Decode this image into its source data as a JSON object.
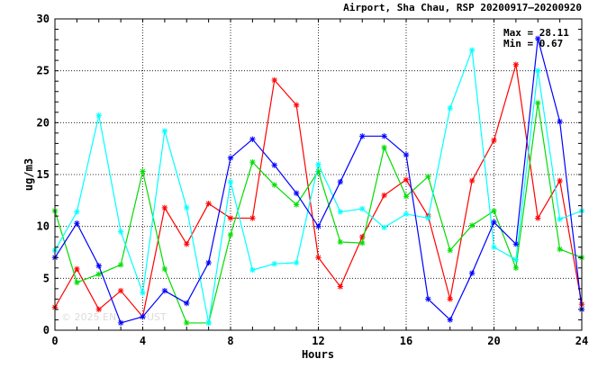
{
  "chart_data": {
    "type": "line",
    "title": "Airport, Sha Chau, RSP 20200917–20200920",
    "xlabel": "Hours",
    "ylabel": "ug/m3",
    "xlim": [
      0,
      24
    ],
    "ylim": [
      0,
      30
    ],
    "xticks": [
      0,
      4,
      8,
      12,
      16,
      20,
      24
    ],
    "yticks": [
      0,
      5,
      10,
      15,
      20,
      25,
      30
    ],
    "grid": true,
    "max_label": "Max = 28.11",
    "min_label": "Min = 0.67",
    "watermark": "© 2025 EN",
    "watermark2": "UST",
    "x": [
      0,
      1,
      2,
      3,
      4,
      5,
      6,
      7,
      8,
      9,
      10,
      11,
      12,
      13,
      14,
      15,
      16,
      17,
      18,
      19,
      20,
      21,
      22,
      23,
      24
    ],
    "series": [
      {
        "color": "#ff0000",
        "values": [
          2.2,
          5.9,
          2.0,
          3.8,
          1.3,
          11.8,
          8.3,
          12.2,
          10.8,
          10.8,
          24.1,
          21.7,
          7.0,
          4.2,
          9.0,
          13.0,
          14.5,
          11.0,
          3.0,
          14.4,
          18.3,
          25.6,
          10.8,
          14.4,
          2.5
        ]
      },
      {
        "color": "#00dd00",
        "values": [
          11.5,
          4.6,
          5.4,
          6.3,
          15.3,
          5.9,
          0.7,
          0.7,
          9.2,
          16.2,
          14.0,
          12.1,
          15.3,
          8.5,
          8.4,
          17.6,
          12.9,
          14.8,
          7.7,
          10.1,
          11.5,
          6.0,
          21.9,
          7.8,
          7.0
        ]
      },
      {
        "color": "#00ffff",
        "values": [
          7.7,
          11.4,
          20.7,
          9.5,
          3.6,
          19.2,
          11.8,
          0.7,
          14.3,
          5.8,
          6.4,
          6.5,
          16.0,
          11.4,
          11.7,
          9.9,
          11.2,
          10.8,
          21.4,
          27.0,
          8.0,
          6.8,
          25.0,
          10.7,
          11.5
        ]
      },
      {
        "color": "#0000ff",
        "values": [
          7.0,
          10.3,
          6.2,
          0.7,
          1.3,
          3.8,
          2.6,
          6.5,
          16.6,
          18.4,
          15.9,
          13.2,
          10.0,
          14.3,
          18.7,
          18.7,
          16.9,
          3.0,
          1.0,
          5.5,
          10.4,
          8.3,
          28.1,
          20.1,
          2.0
        ]
      }
    ]
  }
}
